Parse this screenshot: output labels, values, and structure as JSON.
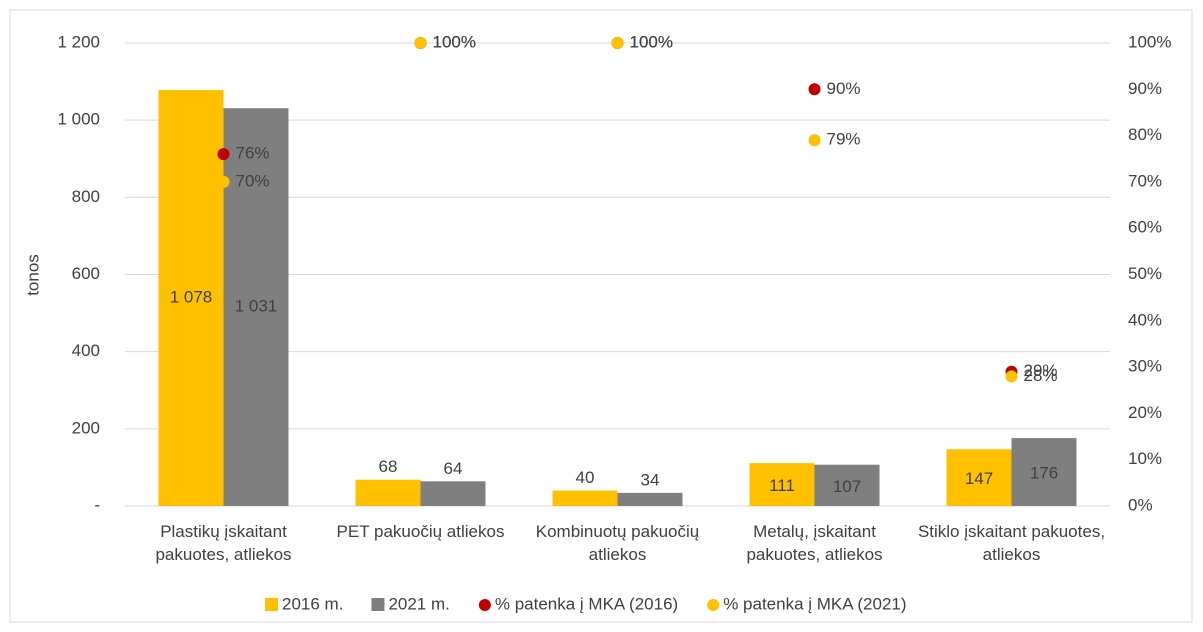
{
  "chart_data": {
    "type": "bar",
    "y_label": "tonos",
    "categories": [
      "Plastikų įskaitant pakuotes, atliekos",
      "PET pakuočių atliekos",
      "Kombinuotų pakuočių atliekos",
      "Metalų, įskaitant pakuotes, atliekos",
      "Stiklo įskaitant pakuotes, atliekos"
    ],
    "series": [
      {
        "name": "2016 m.",
        "color": "#FFC000",
        "values": [
          1078,
          68,
          40,
          111,
          147
        ],
        "value_labels": [
          "1 078",
          "68",
          "40",
          "111",
          "147"
        ]
      },
      {
        "name": "2021 m.",
        "color": "#7F7F7F",
        "values": [
          1031,
          64,
          34,
          107,
          176
        ],
        "value_labels": [
          "1 031",
          "64",
          "34",
          "107",
          "176"
        ]
      },
      {
        "name": "% patenka į MKA (2016)",
        "type": "scatter",
        "axis": "y2",
        "color": "#C00000",
        "values": [
          76,
          100,
          100,
          90,
          29
        ],
        "value_labels": [
          "76%",
          "100%",
          "100%",
          "90%",
          "29%"
        ]
      },
      {
        "name": "% patenka į MKA (2021)",
        "type": "scatter",
        "axis": "y2",
        "color": "#FFC000",
        "values": [
          70,
          100,
          100,
          79,
          28
        ],
        "value_labels": [
          "70%",
          "100%",
          "100%",
          "79%",
          "28%"
        ]
      }
    ],
    "ylim": [
      0,
      1200
    ],
    "yticks": [
      {
        "value": 0,
        "label": "-"
      },
      200,
      400,
      600,
      800,
      {
        "value": 1000,
        "label": "1 000"
      },
      {
        "value": 1200,
        "label": "1 200"
      }
    ],
    "y2lim": [
      0,
      100
    ],
    "y2ticks": [
      {
        "value": 0,
        "label": "0%"
      },
      {
        "value": 10,
        "label": "10%"
      },
      {
        "value": 20,
        "label": "20%"
      },
      {
        "value": 30,
        "label": "30%"
      },
      {
        "value": 40,
        "label": "40%"
      },
      {
        "value": 50,
        "label": "50%"
      },
      {
        "value": 60,
        "label": "60%"
      },
      {
        "value": 70,
        "label": "70%"
      },
      {
        "value": 80,
        "label": "80%"
      },
      {
        "value": 90,
        "label": "90%"
      },
      {
        "value": 100,
        "label": "100%"
      }
    ],
    "grid": true,
    "legend": "bottom"
  }
}
